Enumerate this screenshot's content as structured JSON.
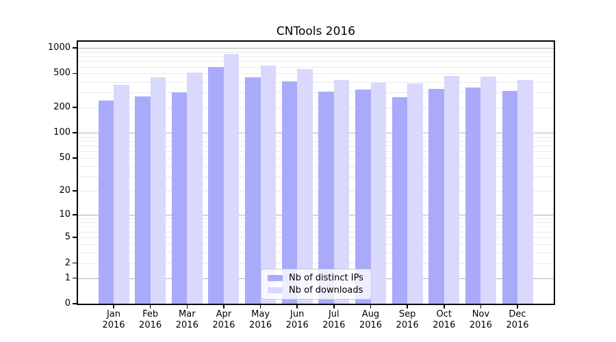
{
  "chart_data": {
    "type": "bar",
    "title": "CNTools 2016",
    "categories": [
      "Jan",
      "Feb",
      "Mar",
      "Apr",
      "May",
      "Jun",
      "Jul",
      "Aug",
      "Sep",
      "Oct",
      "Nov",
      "Dec"
    ],
    "year_label": "2016",
    "series": [
      {
        "name": "Nb of distinct IPs",
        "color": "#aaaafb",
        "values": [
          240,
          270,
          300,
          600,
          450,
          405,
          305,
          325,
          265,
          330,
          340,
          310
        ]
      },
      {
        "name": "Nb of downloads",
        "color": "#d9d9fd",
        "values": [
          370,
          450,
          510,
          850,
          620,
          565,
          420,
          390,
          380,
          470,
          460,
          420
        ]
      }
    ],
    "xlabel": "",
    "ylabel": "",
    "yscale": "log1p",
    "ylim": [
      0,
      1180
    ],
    "y_ticks": [
      0,
      1,
      2,
      5,
      10,
      20,
      50,
      100,
      200,
      500,
      1000
    ],
    "y_major_gridlines": [
      1,
      10,
      100,
      1000
    ],
    "grid": "on",
    "legend_position": "lower center"
  }
}
